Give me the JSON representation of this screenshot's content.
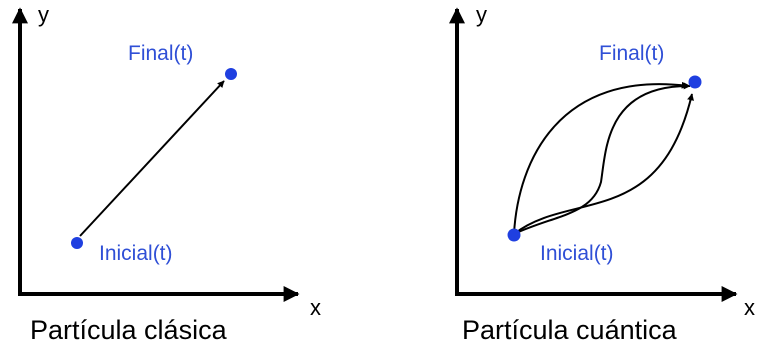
{
  "colors": {
    "axis": "#000000",
    "point": "#1f3fe0",
    "label": "#2f4fd6",
    "path": "#000000"
  },
  "panels": [
    {
      "caption": "Partícula clásica",
      "x_axis_label": "x",
      "y_axis_label": "y",
      "start_label": "Inicial(t)",
      "end_label": "Final(t)",
      "path_count": 1
    },
    {
      "caption": "Partícula cuántica",
      "x_axis_label": "x",
      "y_axis_label": "y",
      "start_label": "Inicial(t)",
      "end_label": "Final(t)",
      "path_count": 3
    }
  ]
}
